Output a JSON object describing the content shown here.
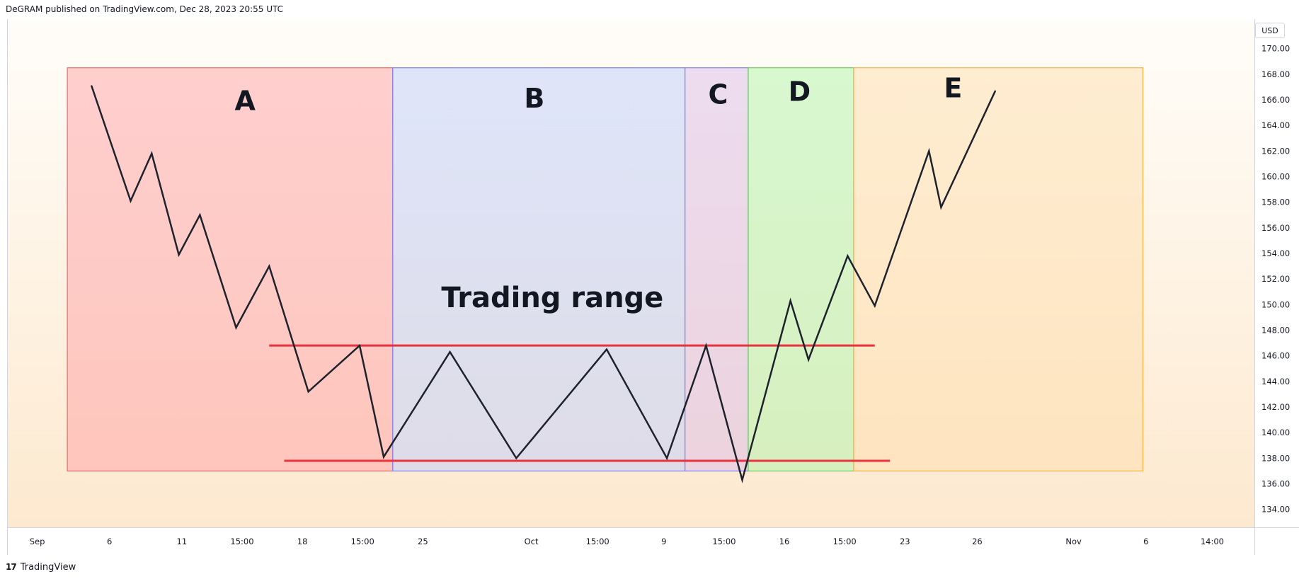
{
  "header": {
    "published_text": "DeGRAM published on TradingView.com, Dec 28, 2023 20:55 UTC"
  },
  "footer": {
    "logo_icon": "tradingview-logo-icon",
    "logo_glyph": "17",
    "brand": "TradingView"
  },
  "price_axis": {
    "currency": "USD"
  },
  "colors": {
    "background_top": "#fffdf9",
    "background_bottom": "#fde9cf",
    "price_line": "#1e222d",
    "range_line": "#e8323e",
    "grid_border": "#d1d4dc"
  },
  "chart_data": {
    "type": "line",
    "ylim": [
      132.6,
      172.3
    ],
    "y_ticks": [
      134,
      136,
      138,
      140,
      142,
      144,
      146,
      148,
      150,
      152,
      154,
      156,
      158,
      160,
      162,
      164,
      166,
      168,
      170
    ],
    "x_tick_labels": [
      "Sep",
      "6",
      "11",
      "15:00",
      "18",
      "15:00",
      "25",
      "Oct",
      "15:00",
      "9",
      "15:00",
      "16",
      "15:00",
      "23",
      "26",
      "Nov",
      "6",
      "14:00"
    ],
    "x_tick_slots": [
      0.5,
      1.7,
      2.9,
      3.9,
      4.9,
      5.9,
      6.9,
      8.7,
      9.8,
      10.9,
      11.9,
      12.9,
      13.9,
      14.9,
      16.1,
      17.7,
      18.9,
      20.0
    ],
    "x_range": [
      0,
      20.7
    ],
    "series": [
      {
        "values": [
          {
            "x": 1.4,
            "y": 167.1
          },
          {
            "x": 2.05,
            "y": 158.1
          },
          {
            "x": 2.4,
            "y": 161.8
          },
          {
            "x": 2.85,
            "y": 153.9
          },
          {
            "x": 3.2,
            "y": 157.0
          },
          {
            "x": 3.8,
            "y": 148.2
          },
          {
            "x": 4.35,
            "y": 153.0
          },
          {
            "x": 5.0,
            "y": 143.2
          },
          {
            "x": 5.85,
            "y": 146.8
          },
          {
            "x": 6.25,
            "y": 138.1
          },
          {
            "x": 7.35,
            "y": 146.3
          },
          {
            "x": 8.45,
            "y": 138.0
          },
          {
            "x": 9.95,
            "y": 146.5
          },
          {
            "x": 10.95,
            "y": 138.0
          },
          {
            "x": 11.6,
            "y": 146.8
          },
          {
            "x": 12.2,
            "y": 136.3
          },
          {
            "x": 13.0,
            "y": 150.3
          },
          {
            "x": 13.3,
            "y": 145.7
          },
          {
            "x": 13.95,
            "y": 153.8
          },
          {
            "x": 14.4,
            "y": 149.9
          },
          {
            "x": 15.3,
            "y": 162.0
          },
          {
            "x": 15.5,
            "y": 157.6
          },
          {
            "x": 16.4,
            "y": 166.7
          }
        ]
      }
    ],
    "horizontal_lines": [
      {
        "y": 146.8,
        "x_start": 4.35,
        "x_end": 14.4
      },
      {
        "y": 137.8,
        "x_start": 4.6,
        "x_end": 14.65
      }
    ],
    "zones": [
      {
        "label": "A",
        "x_start": 1.0,
        "x_end": 6.4,
        "y_top": 168.5,
        "y_bottom": 137.0,
        "fill": "#ff9aa0",
        "stroke": "#ef6b6b"
      },
      {
        "label": "B",
        "x_start": 6.4,
        "x_end": 11.25,
        "y_top": 168.5,
        "y_bottom": 137.0,
        "fill": "#b7c9ff",
        "stroke": "#7b83f0"
      },
      {
        "label": "C",
        "x_start": 11.25,
        "x_end": 12.3,
        "y_top": 168.5,
        "y_bottom": 137.0,
        "fill": "#d8b6e8",
        "stroke": "#7b83f0"
      },
      {
        "label": "D",
        "x_start": 12.3,
        "x_end": 14.05,
        "y_top": 168.5,
        "y_bottom": 137.0,
        "fill": "#a8f5a3",
        "stroke": "#6ccf5f"
      },
      {
        "label": "E",
        "x_start": 14.05,
        "x_end": 18.85,
        "y_top": 168.5,
        "y_bottom": 137.0,
        "fill": "#ffdca6",
        "stroke": "#f5b24d"
      }
    ],
    "annotations": [
      {
        "text": "A",
        "x": 3.95,
        "y": 165.2
      },
      {
        "text": "B",
        "x": 8.75,
        "y": 165.4
      },
      {
        "text": "C",
        "x": 11.8,
        "y": 165.7
      },
      {
        "text": "D",
        "x": 13.15,
        "y": 165.9
      },
      {
        "text": "E",
        "x": 15.7,
        "y": 166.2
      },
      {
        "text": "Trading range",
        "x": 9.05,
        "y": 149.8
      }
    ]
  }
}
